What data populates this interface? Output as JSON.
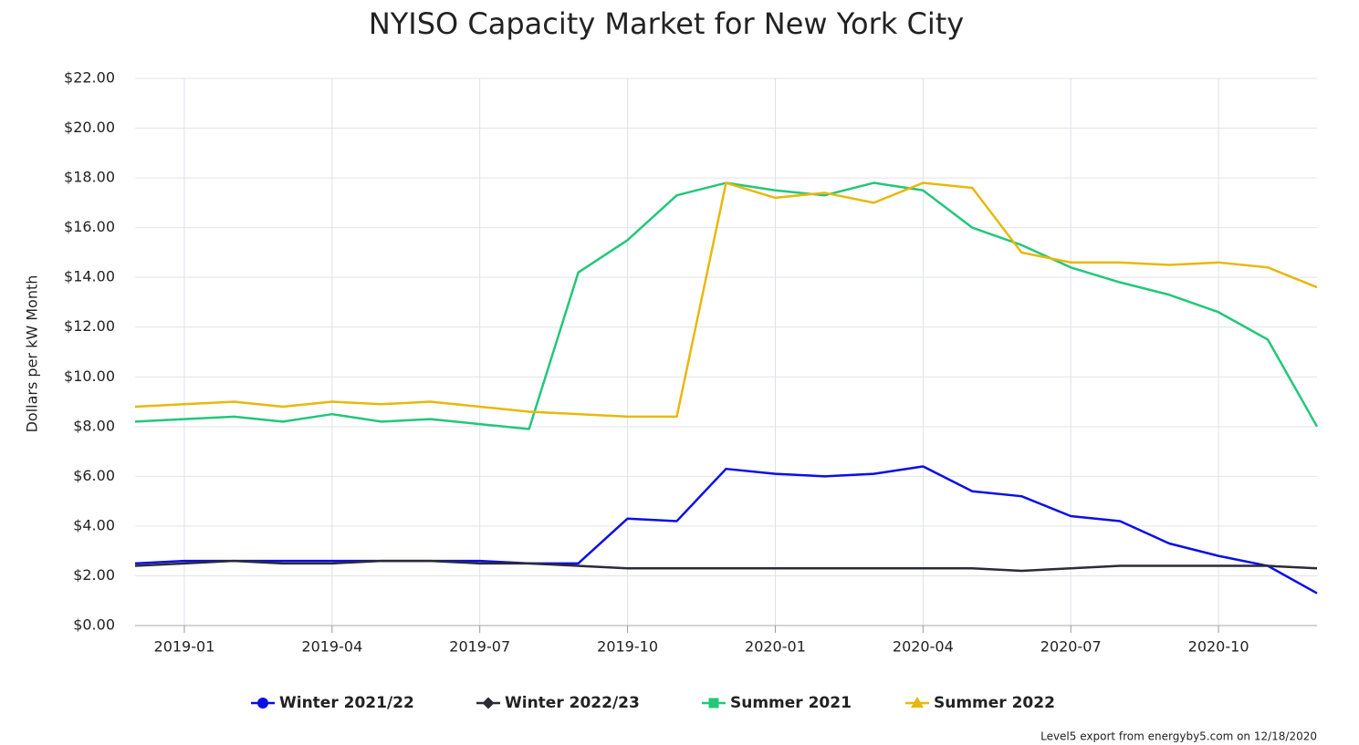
{
  "chart_data": {
    "type": "line",
    "title": "NYISO Capacity Market for New York City",
    "ylabel": "Dollars per kW Month",
    "credit": "Level5 export from energyby5.com on 12/18/2020",
    "x": [
      "2018-12",
      "2019-01",
      "2019-02",
      "2019-03",
      "2019-04",
      "2019-05",
      "2019-06",
      "2019-07",
      "2019-08",
      "2019-09",
      "2019-10",
      "2019-11",
      "2019-12",
      "2020-01",
      "2020-02",
      "2020-03",
      "2020-04",
      "2020-05",
      "2020-06",
      "2020-07",
      "2020-08",
      "2020-09",
      "2020-10",
      "2020-11",
      "2020-12"
    ],
    "xlim": [
      "2018-12",
      "2020-12"
    ],
    "xticks": [
      "2019-01",
      "2019-04",
      "2019-07",
      "2019-10",
      "2020-01",
      "2020-04",
      "2020-07",
      "2020-10"
    ],
    "ylim": [
      0,
      22
    ],
    "yticks": [
      {
        "value": 0,
        "label": "$0.00"
      },
      {
        "value": 2,
        "label": "$2.00"
      },
      {
        "value": 4,
        "label": "$4.00"
      },
      {
        "value": 6,
        "label": "$6.00"
      },
      {
        "value": 8,
        "label": "$8.00"
      },
      {
        "value": 10,
        "label": "$10.00"
      },
      {
        "value": 12,
        "label": "$12.00"
      },
      {
        "value": 14,
        "label": "$14.00"
      },
      {
        "value": 16,
        "label": "$16.00"
      },
      {
        "value": 18,
        "label": "$18.00"
      },
      {
        "value": 20,
        "label": "$20.00"
      },
      {
        "value": 22,
        "label": "$22.00"
      }
    ],
    "grid": true,
    "legend": "bottom",
    "series": [
      {
        "name": "Winter 2021/22",
        "color": "#0a0ee6",
        "marker": "circle",
        "values": [
          2.5,
          2.6,
          2.6,
          2.6,
          2.6,
          2.6,
          2.6,
          2.6,
          2.5,
          2.5,
          4.3,
          4.2,
          6.3,
          6.1,
          6.0,
          6.1,
          6.4,
          5.4,
          5.2,
          4.4,
          4.2,
          3.3,
          2.8,
          2.4,
          1.3
        ]
      },
      {
        "name": "Winter 2022/23",
        "color": "#2b2b36",
        "marker": "diamond",
        "values": [
          2.4,
          2.5,
          2.6,
          2.5,
          2.5,
          2.6,
          2.6,
          2.5,
          2.5,
          2.4,
          2.3,
          2.3,
          2.3,
          2.3,
          2.3,
          2.3,
          2.3,
          2.3,
          2.2,
          2.3,
          2.4,
          2.4,
          2.4,
          2.4,
          2.3
        ]
      },
      {
        "name": "Summer 2021",
        "color": "#22c77a",
        "marker": "square",
        "values": [
          8.2,
          8.3,
          8.4,
          8.2,
          8.5,
          8.2,
          8.3,
          8.1,
          7.9,
          14.2,
          15.5,
          17.3,
          17.8,
          17.5,
          17.3,
          17.8,
          17.5,
          16.0,
          15.3,
          14.4,
          13.8,
          13.3,
          12.6,
          11.5,
          8.0
        ]
      },
      {
        "name": "Summer 2022",
        "color": "#e8b80c",
        "marker": "triangle",
        "values": [
          8.8,
          8.9,
          9.0,
          8.8,
          9.0,
          8.9,
          9.0,
          8.8,
          8.6,
          8.5,
          8.4,
          8.4,
          17.8,
          17.2,
          17.4,
          17.0,
          17.8,
          17.6,
          15.0,
          14.6,
          14.6,
          14.5,
          14.6,
          14.4,
          13.6
        ]
      }
    ]
  }
}
